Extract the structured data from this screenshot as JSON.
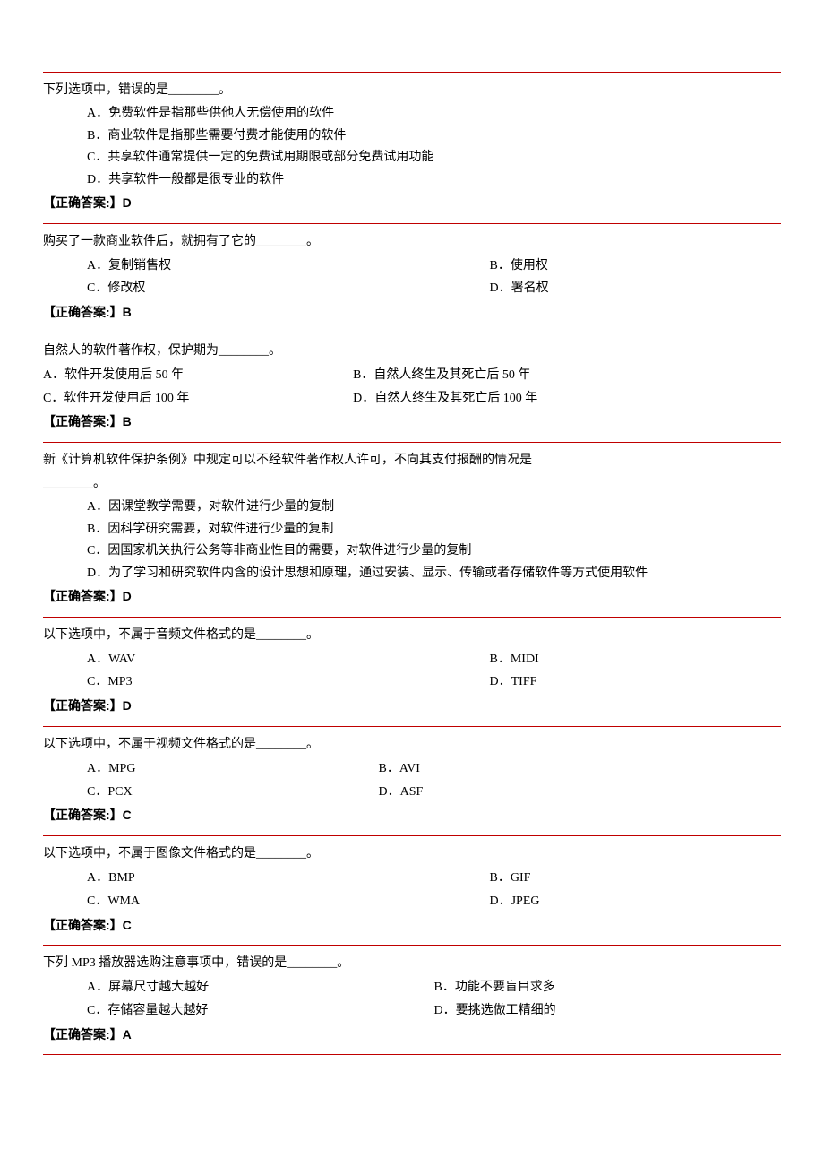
{
  "colors": {
    "rule": "#c00000",
    "text": "#000000",
    "bg": "#ffffff"
  },
  "typography": {
    "body_family": "SimSun",
    "body_size_pt": 10.5,
    "answer_family": "SimHei",
    "answer_bold": true
  },
  "questions": [
    {
      "stem": "下列选项中，错误的是________。",
      "layout": "single",
      "options": {
        "A": "A．免费软件是指那些供他人无偿使用的软件",
        "B": "B．商业软件是指那些需要付费才能使用的软件",
        "C": "C．共享软件通常提供一定的免费试用期限或部分免费试用功能",
        "D": "D．共享软件一般都是很专业的软件"
      },
      "answer": "【正确答案:】D"
    },
    {
      "stem": "购买了一款商业软件后，就拥有了它的________。",
      "layout": "grid-wide",
      "options": {
        "A": "A．复制销售权",
        "B": "B．使用权",
        "C": "C．修改权",
        "D": "D．署名权"
      },
      "answer": "【正确答案:】B"
    },
    {
      "stem": "自然人的软件著作权，保护期为________。",
      "layout": "flat",
      "options": {
        "A": "A．软件开发使用后 50 年",
        "B": "B．自然人终生及其死亡后 50 年",
        "C": "C．软件开发使用后 100 年",
        "D": "D．自然人终生及其死亡后 100 年"
      },
      "answer": "【正确答案:】B"
    },
    {
      "stem": "新《计算机软件保护条例》中规定可以不经软件著作权人许可，不向其支付报酬的情况是",
      "stem2": "________。",
      "layout": "single",
      "options": {
        "A": "A．因课堂教学需要，对软件进行少量的复制",
        "B": "B．因科学研究需要，对软件进行少量的复制",
        "C": "C．因国家机关执行公务等非商业性目的需要，对软件进行少量的复制",
        "D": "D．为了学习和研究软件内含的设计思想和原理，通过安装、显示、传输或者存储软件等方式使用软件"
      },
      "answer": "【正确答案:】D"
    },
    {
      "stem": "以下选项中，不属于音频文件格式的是________。",
      "layout": "grid-wide",
      "options": {
        "A": "A．WAV",
        "B": "B．MIDI",
        "C": "C．MP3",
        "D": "D．TIFF"
      },
      "answer": "【正确答案:】D"
    },
    {
      "stem": "以下选项中，不属于视频文件格式的是________。",
      "layout": "grid-mid",
      "options": {
        "A": "A．MPG",
        "B": "B．AVI",
        "C": "C．PCX",
        "D": "D．ASF"
      },
      "answer": "【正确答案:】C"
    },
    {
      "stem": "以下选项中，不属于图像文件格式的是________。",
      "layout": "grid-wide",
      "options": {
        "A": "A．BMP",
        "B": "B．GIF",
        "C": "C．WMA",
        "D": "D．JPEG"
      },
      "answer": "【正确答案:】C"
    },
    {
      "stem": "下列 MP3 播放器选购注意事项中，错误的是________。",
      "layout": "grid-narrow",
      "options": {
        "A": "A．屏幕尺寸越大越好",
        "B": "B．功能不要盲目求多",
        "C": "C．存储容量越大越好",
        "D": "D．要挑选做工精细的"
      },
      "answer": "【正确答案:】A"
    }
  ]
}
